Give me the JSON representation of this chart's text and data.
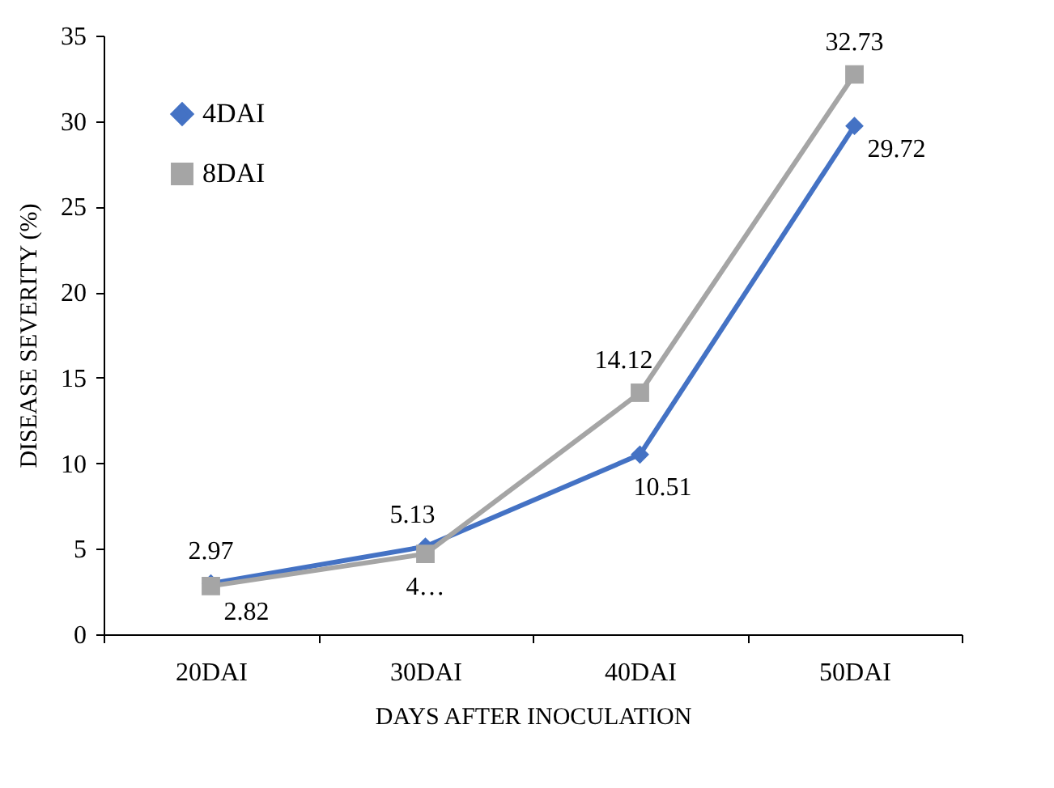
{
  "chart_data": {
    "type": "line",
    "xlabel": "DAYS AFTER INOCULATION",
    "ylabel": "DISEASE SEVERITY (%)",
    "categories": [
      "20DAI",
      "30DAI",
      "40DAI",
      "50DAI"
    ],
    "series": [
      {
        "name": "4DAI",
        "color": "#4472c4",
        "marker": "diamond",
        "values": [
          2.97,
          5.13,
          10.51,
          29.72
        ],
        "value_labels": [
          "2.97",
          "5.13",
          "10.51",
          "29.72"
        ]
      },
      {
        "name": "8DAI",
        "color": "#a5a5a5",
        "marker": "square",
        "values": [
          2.82,
          4.7,
          14.12,
          32.73
        ],
        "value_labels": [
          "2.82",
          "4…",
          "14.12",
          "32.73"
        ]
      }
    ],
    "ylim": [
      0,
      35
    ],
    "yticks": [
      0,
      5,
      10,
      15,
      20,
      25,
      30,
      35
    ],
    "grid": false,
    "legend": "top left",
    "line_style": "solid"
  }
}
